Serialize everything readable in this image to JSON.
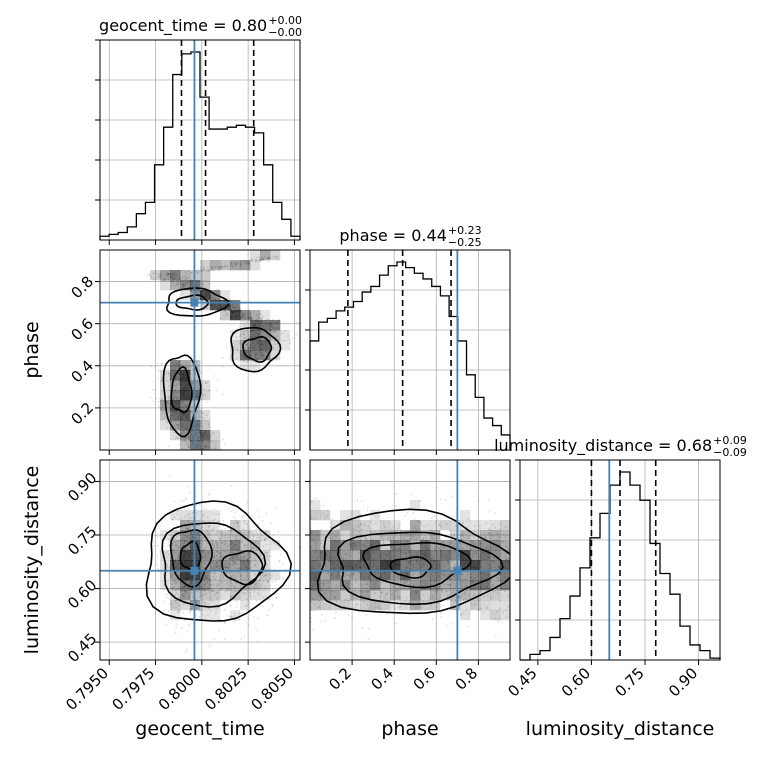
{
  "chart_data": {
    "type": "corner",
    "grid": true,
    "colors": {
      "truth": "#4682b4",
      "hist": "#000000",
      "quantile": "#000000",
      "grid": "#b0b0b0",
      "contour_fill": "#000000"
    },
    "parameters": [
      {
        "name": "geocent_time",
        "label": "geocent_time",
        "range": [
          0.7945,
          0.8053
        ],
        "ticks": [
          0.795,
          0.7975,
          0.8,
          0.8025,
          0.805
        ],
        "tick_labels": [
          "0.7950",
          "0.7975",
          "0.8000",
          "0.8025",
          "0.8050"
        ],
        "truth": 0.7996,
        "quantiles": [
          0.7989,
          0.8002,
          0.8028
        ],
        "title": {
          "main": "geocent_time = 0.80",
          "sup": "+0.00",
          "sub": "−0.00"
        },
        "hist": [
          0.02,
          0.03,
          0.04,
          0.07,
          0.14,
          0.2,
          0.4,
          0.6,
          0.88,
          0.99,
          1.0,
          0.76,
          0.59,
          0.59,
          0.6,
          0.61,
          0.6,
          0.57,
          0.4,
          0.2,
          0.11,
          0.02
        ]
      },
      {
        "name": "phase",
        "label": "phase",
        "range": [
          0.0,
          0.95
        ],
        "ticks": [
          0.2,
          0.4,
          0.6,
          0.8
        ],
        "tick_labels": [
          "0.2",
          "0.4",
          "0.6",
          "0.8"
        ],
        "truth": 0.7,
        "quantiles": [
          0.18,
          0.44,
          0.67
        ],
        "title": {
          "main": "phase = 0.44",
          "sup": "+0.23",
          "sub": "−0.25"
        },
        "hist": [
          0.58,
          0.68,
          0.7,
          0.74,
          0.76,
          0.79,
          0.84,
          0.87,
          0.93,
          0.98,
          1.0,
          0.97,
          0.94,
          0.91,
          0.87,
          0.82,
          0.71,
          0.58,
          0.4,
          0.28,
          0.17,
          0.13,
          0.08
        ]
      },
      {
        "name": "luminosity_distance",
        "label": "luminosity_distance",
        "range": [
          0.4,
          0.96
        ],
        "ticks": [
          0.45,
          0.6,
          0.75,
          0.9
        ],
        "tick_labels": [
          "0.45",
          "0.60",
          "0.75",
          "0.90"
        ],
        "truth": 0.65,
        "quantiles": [
          0.6,
          0.68,
          0.78
        ],
        "title": {
          "main": "luminosity_distance = 0.68",
          "sup": "+0.09",
          "sub": "−0.09"
        },
        "hist": [
          0.0,
          0.03,
          0.05,
          0.12,
          0.22,
          0.34,
          0.49,
          0.65,
          0.78,
          0.93,
          1.0,
          0.93,
          0.85,
          0.62,
          0.46,
          0.35,
          0.18,
          0.08,
          0.05,
          0.01
        ]
      }
    ]
  }
}
